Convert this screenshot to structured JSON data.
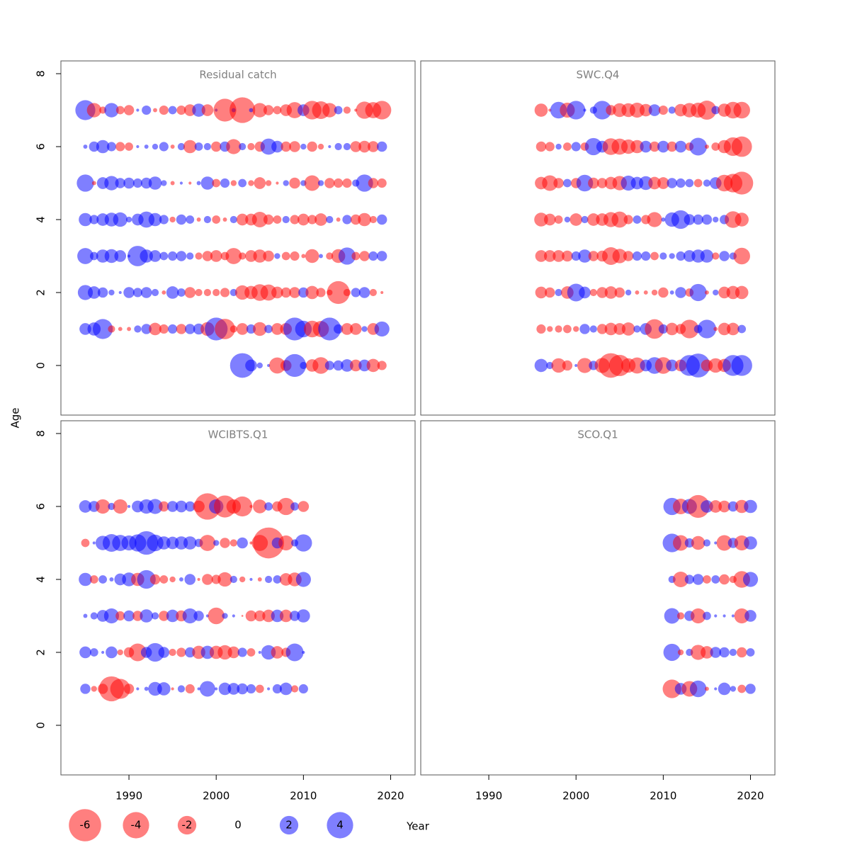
{
  "chart_data": [
    {
      "type": "bubble",
      "title": "Residual catch",
      "years": [
        1985,
        1986,
        1987,
        1988,
        1989,
        1990,
        1991,
        1992,
        1993,
        1994,
        1995,
        1996,
        1997,
        1998,
        1999,
        2000,
        2001,
        2002,
        2003,
        2004,
        2005,
        2006,
        2007,
        2008,
        2009,
        2010,
        2011,
        2012,
        2013,
        2014,
        2015,
        2016,
        2017,
        2018,
        2019
      ],
      "ages": [
        7,
        6,
        5,
        4,
        3,
        2,
        1,
        0
      ],
      "residuals": [
        [
          2.3,
          -1.2,
          -0.3,
          1.2,
          -0.4,
          -0.6,
          0.05,
          0.5,
          -0.1,
          -0.5,
          0.4,
          -0.5,
          -0.8,
          1.0,
          -0.8,
          0.05,
          -3.0,
          0.1,
          -3.8,
          0.1,
          -1.2,
          -0.6,
          -0.4,
          -0.8,
          -1.5,
          0.8,
          -2.0,
          -1.8,
          -1.2,
          0.4,
          -0.3,
          -0.05,
          -1.7,
          -1.5,
          -2.0
        ],
        [
          0.1,
          0.6,
          1.0,
          0.5,
          -0.5,
          -0.4,
          0.05,
          0.1,
          0.2,
          0.5,
          -0.1,
          0.3,
          -1.0,
          0.4,
          0.3,
          -0.6,
          0.6,
          -1.3,
          0.3,
          -0.3,
          -0.6,
          1.5,
          0.8,
          -0.6,
          -0.7,
          0.2,
          -0.6,
          -0.2,
          0.05,
          0.3,
          0.3,
          -0.7,
          -0.8,
          -0.7,
          0.6
        ],
        [
          1.7,
          -0.1,
          0.8,
          1.2,
          0.6,
          0.7,
          0.5,
          0.7,
          1.0,
          0.2,
          -0.1,
          0.05,
          -0.05,
          0.1,
          1.0,
          -0.4,
          0.5,
          -0.2,
          0.4,
          -0.2,
          -0.8,
          -0.2,
          -0.05,
          0.2,
          -0.7,
          0.2,
          -1.4,
          0.2,
          -0.6,
          -0.5,
          -0.5,
          0.3,
          1.7,
          -0.6,
          -0.5
        ],
        [
          1.0,
          0.5,
          0.9,
          1.1,
          1.2,
          0.2,
          0.8,
          1.5,
          1.0,
          0.5,
          -0.2,
          0.6,
          0.4,
          -0.1,
          0.3,
          -0.4,
          -0.1,
          0.3,
          -0.8,
          -0.8,
          -1.4,
          -0.6,
          -0.4,
          0.3,
          -0.5,
          -0.8,
          -0.5,
          -0.9,
          0.3,
          -0.1,
          0.5,
          -0.6,
          -1.0,
          -0.3,
          0.6
        ],
        [
          1.5,
          0.4,
          1.0,
          1.1,
          0.8,
          0.05,
          2.4,
          1.0,
          0.8,
          0.4,
          0.5,
          0.6,
          0.3,
          -0.3,
          -0.6,
          -0.8,
          -0.4,
          -1.5,
          -0.3,
          -0.8,
          -1.0,
          -0.7,
          0.2,
          -0.4,
          -0.5,
          -0.1,
          -1.1,
          0.1,
          -0.3,
          -1.1,
          1.7,
          -0.4,
          -0.6,
          0.5,
          0.6
        ],
        [
          1.3,
          0.9,
          0.6,
          0.2,
          0.05,
          0.7,
          0.5,
          0.7,
          0.3,
          -0.1,
          0.9,
          0.4,
          -0.7,
          -0.3,
          -0.3,
          -0.3,
          -0.5,
          0.3,
          -1.2,
          -1.0,
          -1.6,
          -1.5,
          -0.8,
          -0.6,
          -0.7,
          0.6,
          -1.0,
          -0.5,
          -0.2,
          -3.0,
          -0.3,
          0.5,
          0.7,
          -0.3,
          -0.05
        ],
        [
          0.8,
          1.0,
          2.3,
          -0.3,
          -0.1,
          -0.1,
          0.3,
          0.6,
          -0.9,
          -0.5,
          0.5,
          -0.6,
          0.6,
          0.7,
          -1.1,
          3.0,
          -2.4,
          -0.3,
          -0.8,
          0.5,
          -1.1,
          0.4,
          -0.8,
          -0.8,
          3.0,
          1.6,
          -1.6,
          -1.5,
          3.0,
          0.5,
          -0.8,
          -0.8,
          0.2,
          -0.8,
          1.3
        ],
        [
          null,
          null,
          null,
          null,
          null,
          null,
          null,
          null,
          null,
          null,
          null,
          null,
          null,
          null,
          null,
          null,
          null,
          null,
          3.5,
          0.8,
          0.2,
          0.05,
          -1.5,
          -0.7,
          3.0,
          0.3,
          -0.9,
          -1.6,
          0.5,
          0.6,
          0.9,
          -0.8,
          0.8,
          -1.0,
          -0.5
        ]
      ]
    },
    {
      "type": "bubble",
      "title": "SWC.Q4",
      "years": [
        1996,
        1997,
        1998,
        1999,
        2000,
        2001,
        2002,
        2003,
        2004,
        2005,
        2006,
        2007,
        2008,
        2009,
        2010,
        2011,
        2012,
        2013,
        2014,
        2015,
        2016,
        2017,
        2018,
        2019
      ],
      "ages": [
        7,
        6,
        5,
        4,
        3,
        2,
        1,
        0
      ],
      "residuals": [
        [
          -1.0,
          -0.05,
          1.6,
          -1.3,
          2.0,
          0.05,
          0.3,
          2.0,
          -0.6,
          -1.1,
          -1.1,
          -1.3,
          -0.9,
          0.8,
          -0.5,
          0.3,
          -0.9,
          -1.2,
          -1.3,
          -2.1,
          0.4,
          -1.0,
          -1.6,
          -1.6
        ],
        [
          -0.6,
          -0.5,
          0.2,
          -0.4,
          0.5,
          -0.4,
          1.7,
          0.8,
          -1.6,
          -1.5,
          -1.2,
          -1.0,
          0.8,
          -0.6,
          0.8,
          -0.6,
          0.8,
          -0.4,
          1.8,
          -0.1,
          -0.4,
          -1.0,
          -2.0,
          -2.4
        ],
        [
          -0.9,
          -1.4,
          -0.6,
          0.4,
          -0.6,
          1.6,
          -0.7,
          -0.6,
          -0.9,
          -1.2,
          1.3,
          0.9,
          1.1,
          -0.9,
          -0.8,
          0.6,
          0.5,
          0.4,
          -0.4,
          0.3,
          0.8,
          -1.6,
          -2.0,
          -3.0
        ],
        [
          -1.1,
          -0.8,
          -0.4,
          0.2,
          -0.9,
          0.3,
          -0.9,
          -0.9,
          -1.3,
          -1.5,
          -0.5,
          0.4,
          -0.5,
          -1.3,
          0.1,
          1.2,
          2.0,
          0.7,
          0.6,
          0.6,
          0.2,
          0.5,
          -1.6,
          -1.1
        ],
        [
          -0.8,
          -0.8,
          -0.8,
          -0.7,
          0.5,
          1.0,
          -0.6,
          -0.7,
          -1.8,
          -1.2,
          -0.6,
          0.5,
          0.5,
          -0.4,
          0.3,
          0.2,
          0.5,
          0.8,
          1.0,
          1.0,
          -0.3,
          0.6,
          0.3,
          -1.6
        ],
        [
          -0.8,
          -0.6,
          0.3,
          -0.9,
          1.8,
          0.8,
          -0.3,
          -0.7,
          -0.9,
          -0.6,
          0.2,
          -0.1,
          -0.1,
          -0.2,
          -0.6,
          0.1,
          0.7,
          -0.4,
          1.7,
          -0.1,
          0.2,
          -0.8,
          -1.0,
          -1.0
        ],
        [
          -0.5,
          -0.2,
          -0.3,
          -0.4,
          -0.2,
          0.6,
          0.3,
          -0.6,
          -0.9,
          -0.8,
          -1.0,
          0.3,
          0.8,
          -2.2,
          0.5,
          -0.9,
          -0.6,
          -2.0,
          0.4,
          2.0,
          -0.1,
          -0.9,
          -0.9,
          0.4
        ],
        [
          1.0,
          0.3,
          -1.2,
          -0.6,
          0.05,
          -1.3,
          0.5,
          -1.3,
          -3.5,
          -2.6,
          -1.2,
          -1.5,
          0.8,
          1.6,
          -1.6,
          0.8,
          -0.8,
          2.5,
          3.3,
          -0.8,
          -1.2,
          -1.0,
          2.5,
          2.5
        ]
      ]
    },
    {
      "type": "bubble",
      "title": "WCIBTS.Q1",
      "years": [
        1985,
        1986,
        1987,
        1988,
        1989,
        1990,
        1991,
        1992,
        1993,
        1994,
        1995,
        1996,
        1997,
        1998,
        1999,
        2000,
        2001,
        2002,
        2003,
        2004,
        2005,
        2006,
        2007,
        2008,
        2009,
        2010
      ],
      "ages": [
        6,
        5,
        4,
        3,
        2,
        1
      ],
      "residuals": [
        [
          0.9,
          0.7,
          -1.2,
          0.3,
          -1.2,
          0.05,
          0.8,
          1.2,
          1.3,
          -0.6,
          0.7,
          0.8,
          0.6,
          -0.8,
          -4.0,
          1.2,
          -2.8,
          -1.2,
          -2.3,
          -0.05,
          -1.1,
          0.4,
          -0.6,
          -1.7,
          0.4,
          -0.7
        ],
        [
          -0.4,
          0.05,
          1.2,
          1.8,
          1.5,
          1.3,
          1.7,
          3.2,
          1.6,
          1.0,
          0.9,
          1.0,
          1.0,
          0.4,
          -1.5,
          0.2,
          -0.6,
          -0.3,
          0.7,
          -0.05,
          -1.5,
          -5.5,
          0.7,
          -1.3,
          0.3,
          1.7
        ],
        [
          1.0,
          -0.4,
          0.4,
          0.1,
          0.8,
          1.1,
          -1.0,
          2.0,
          -0.6,
          -0.4,
          -0.2,
          0.1,
          0.7,
          -0.05,
          -0.7,
          -0.5,
          -1.2,
          0.3,
          -0.2,
          0.05,
          -0.1,
          0.3,
          0.4,
          -0.9,
          -1.1,
          1.3
        ],
        [
          0.1,
          0.3,
          0.8,
          1.3,
          -0.5,
          0.7,
          -0.6,
          1.0,
          0.3,
          -0.6,
          0.9,
          -0.7,
          1.3,
          0.6,
          0.05,
          -1.6,
          0.2,
          0.05,
          -0.02,
          -0.7,
          -0.7,
          -0.9,
          0.9,
          -0.9,
          0.6,
          1.0
        ],
        [
          0.8,
          0.4,
          0.05,
          0.8,
          -0.2,
          -0.6,
          -1.8,
          0.7,
          2.0,
          0.7,
          -0.3,
          -0.5,
          0.6,
          -1.0,
          1.0,
          -1.0,
          -1.2,
          -0.8,
          0.5,
          -0.4,
          0.05,
          1.2,
          -0.9,
          -0.5,
          1.8,
          0.05
        ],
        [
          0.6,
          -0.2,
          -0.6,
          -3.6,
          -2.3,
          -0.6,
          0.05,
          0.1,
          1.1,
          1.0,
          -0.05,
          0.3,
          -0.5,
          0.05,
          1.4,
          0.05,
          0.9,
          0.8,
          0.7,
          0.5,
          -0.4,
          0.05,
          0.5,
          0.9,
          -0.3,
          0.5
        ]
      ]
    },
    {
      "type": "bubble",
      "title": "SCO.Q1",
      "years": [
        2011,
        2012,
        2013,
        2014,
        2015,
        2016,
        2017,
        2018,
        2019,
        2020
      ],
      "ages": [
        6,
        5,
        4,
        3,
        2,
        1
      ],
      "residuals": [
        [
          1.7,
          -1.4,
          1.3,
          -3.0,
          0.9,
          -0.9,
          -0.8,
          0.6,
          -1.0,
          1.0
        ],
        [
          2.0,
          -1.4,
          0.5,
          -1.1,
          0.3,
          0.05,
          -1.4,
          0.6,
          -1.3,
          1.0
        ],
        [
          0.3,
          -1.4,
          0.5,
          0.7,
          -0.4,
          0.4,
          -0.6,
          -0.3,
          -1.6,
          1.3
        ],
        [
          1.4,
          -0.3,
          0.6,
          -1.3,
          0.4,
          0.05,
          0.05,
          0.05,
          -1.3,
          0.8
        ],
        [
          1.7,
          -0.2,
          0.3,
          -1.3,
          -0.9,
          0.7,
          0.6,
          0.3,
          -0.6,
          0.4
        ],
        [
          -2.0,
          0.8,
          -1.4,
          1.6,
          -0.1,
          0.05,
          0.9,
          0.2,
          -0.4,
          0.6
        ]
      ]
    }
  ],
  "x_axis": {
    "label": "Year",
    "lim": [
      1982.2,
      2022.8
    ],
    "ticks": [
      1990,
      2000,
      2010,
      2020
    ]
  },
  "y_axis": {
    "label": "Age",
    "lim": [
      -1.36,
      8.35
    ],
    "ticks": [
      0,
      2,
      4,
      6,
      8
    ]
  },
  "colors": {
    "negative": "#ff0000",
    "positive": "#0000ff"
  },
  "opacity": 0.5,
  "size_legend": [
    -6,
    -4,
    -2,
    0,
    2,
    4
  ]
}
